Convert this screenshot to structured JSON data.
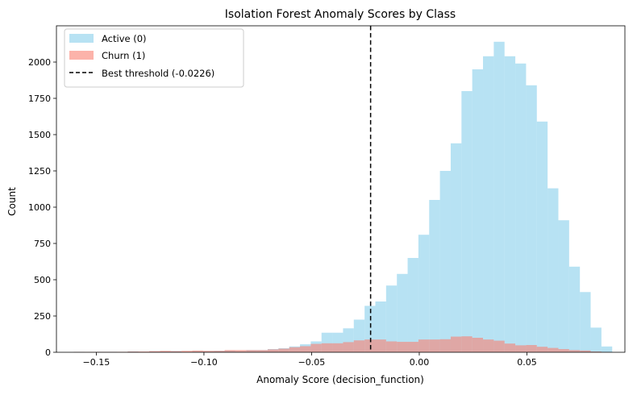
{
  "chart_data": {
    "type": "histogram",
    "title": "Isolation Forest Anomaly Scores by Class",
    "xlabel": "Anomaly Score (decision_function)",
    "ylabel": "Count",
    "xlim": [
      -0.1685,
      0.0955
    ],
    "ylim": [
      0,
      2250
    ],
    "xticks": [
      -0.15,
      -0.1,
      -0.05,
      0.0,
      0.05
    ],
    "xtick_labels": [
      "−0.15",
      "−0.10",
      "−0.05",
      "0.00",
      "0.05"
    ],
    "yticks": [
      0,
      250,
      500,
      750,
      1000,
      1250,
      1500,
      1750,
      2000
    ],
    "grid": false,
    "legend_location": "upper-left",
    "threshold": {
      "label": "Best threshold (-0.0226)",
      "x": -0.0226,
      "color": "#000000",
      "style": "dashed"
    },
    "series": [
      {
        "name": "Active (0)",
        "color": "#87ceeb",
        "opacity": 0.6,
        "bin_start": -0.1604,
        "bin_width": 0.005,
        "counts": [
          2,
          0,
          3,
          3,
          0,
          5,
          0,
          5,
          5,
          8,
          0,
          6,
          8,
          10,
          12,
          8,
          15,
          15,
          22,
          28,
          40,
          55,
          75,
          135,
          135,
          165,
          225,
          320,
          350,
          460,
          540,
          650,
          810,
          1050,
          1250,
          1440,
          1800,
          1950,
          2040,
          2140,
          2040,
          1990,
          1840,
          1590,
          1130,
          910,
          590,
          415,
          170,
          40
        ]
      },
      {
        "name": "Churn (1)",
        "color": "#fa8072",
        "opacity": 0.6,
        "bin_start": -0.1604,
        "bin_width": 0.005,
        "counts": [
          2,
          2,
          3,
          3,
          3,
          5,
          5,
          8,
          10,
          8,
          10,
          12,
          10,
          10,
          15,
          15,
          15,
          15,
          20,
          25,
          35,
          42,
          58,
          62,
          62,
          70,
          82,
          88,
          88,
          75,
          72,
          72,
          88,
          88,
          90,
          108,
          110,
          100,
          88,
          80,
          60,
          48,
          50,
          38,
          30,
          22,
          15,
          12,
          5,
          2
        ]
      }
    ]
  }
}
